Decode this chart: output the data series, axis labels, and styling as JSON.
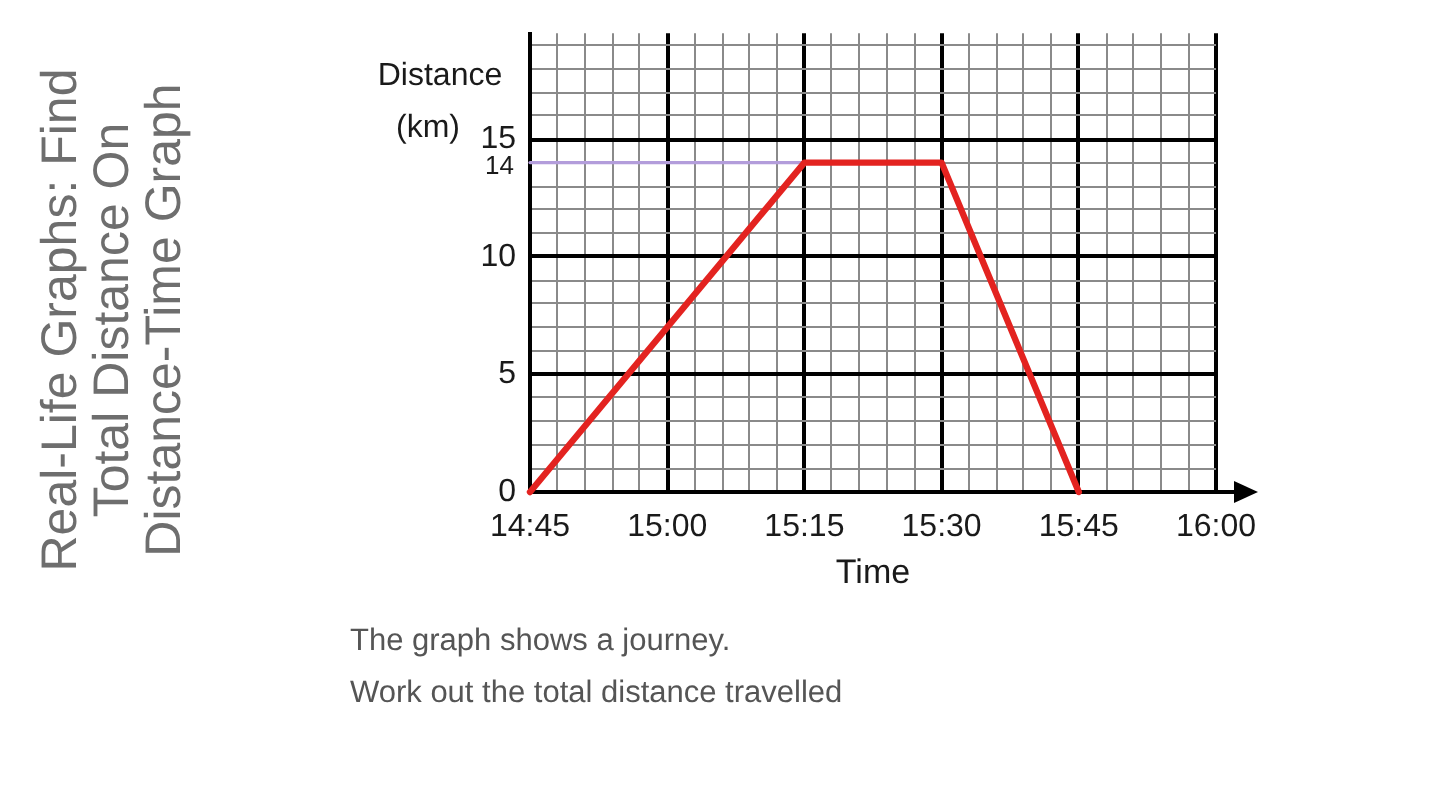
{
  "chart_data": {
    "type": "line",
    "title": "Real-Life Graphs: Find Total Distance On Distance-Time Graph",
    "xlabel": "Time",
    "ylabel": "Distance (km)",
    "xlim": [
      14.75,
      16
    ],
    "ylim": [
      0,
      19.5
    ],
    "xticks": [
      {
        "value": 14.75,
        "label": "14:45"
      },
      {
        "value": 14.8,
        "label": null
      },
      {
        "value": 14.85,
        "label": null
      },
      {
        "value": 14.9,
        "label": null
      },
      {
        "value": 14.95,
        "label": null
      },
      {
        "value": 15,
        "label": "15:00"
      },
      {
        "value": 15.05,
        "label": null
      },
      {
        "value": 15.1,
        "label": null
      },
      {
        "value": 15.15,
        "label": null
      },
      {
        "value": 15.2,
        "label": null
      },
      {
        "value": 15.25,
        "label": "15:15"
      },
      {
        "value": 15.3,
        "label": null
      },
      {
        "value": 15.35,
        "label": null
      },
      {
        "value": 15.4,
        "label": null
      },
      {
        "value": 15.45,
        "label": null
      },
      {
        "value": 15.5,
        "label": "15:30"
      },
      {
        "value": 15.55,
        "label": null
      },
      {
        "value": 15.6,
        "label": null
      },
      {
        "value": 15.65,
        "label": null
      },
      {
        "value": 15.7,
        "label": null
      },
      {
        "value": 15.75,
        "label": "15:45"
      },
      {
        "value": 15.8,
        "label": null
      },
      {
        "value": 15.85,
        "label": null
      },
      {
        "value": 15.9,
        "label": null
      },
      {
        "value": 15.95,
        "label": null
      },
      {
        "value": 16,
        "label": "16:00"
      }
    ],
    "yticks": [
      0,
      {
        "value": 1,
        "label": null
      },
      {
        "value": 2,
        "label": null
      },
      {
        "value": 3,
        "label": null
      },
      {
        "value": 4,
        "label": null
      },
      5,
      {
        "value": 6,
        "label": null
      },
      {
        "value": 7,
        "label": null
      },
      {
        "value": 8,
        "label": null
      },
      {
        "value": 9,
        "label": null
      },
      10,
      {
        "value": 11,
        "label": null
      },
      {
        "value": 12,
        "label": null
      },
      {
        "value": 13,
        "label": null
      },
      {
        "value": 14,
        "label": null
      },
      15,
      {
        "value": 16,
        "label": null
      },
      {
        "value": 17,
        "label": null
      },
      {
        "value": 18,
        "label": null
      },
      {
        "value": 19,
        "label": null
      }
    ],
    "series": [
      {
        "color": "#e32320",
        "x": [
          14.75,
          15.25,
          15.5,
          15.75
        ],
        "values": [
          0,
          14,
          14,
          0
        ]
      },
      {
        "color": "#b39ddb",
        "x": [
          14.75,
          15.25
        ],
        "values": [
          14,
          14
        ]
      }
    ],
    "annotations": [
      {
        "text": "14",
        "x": 14.75,
        "y": 14
      },
      "The graph shows a journey.",
      "Work out the total distance travelled"
    ],
    "grid": true,
    "marker": "none",
    "line_style": "solid"
  }
}
